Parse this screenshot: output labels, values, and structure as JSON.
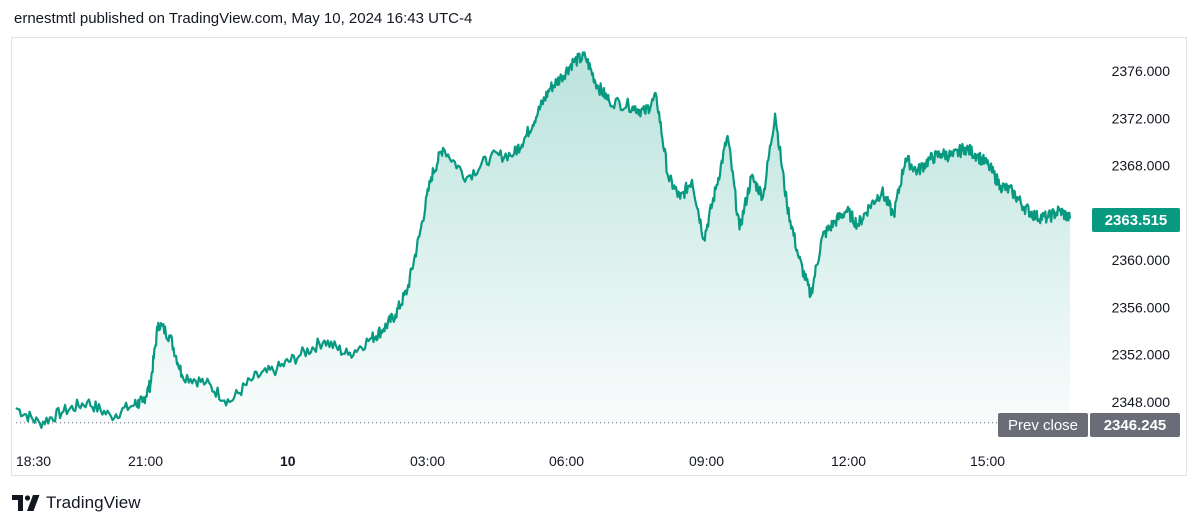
{
  "header": {
    "text": "ernestmtl published on TradingView.com, May 10, 2024 16:43 UTC-4"
  },
  "footer": {
    "brand": "TradingView",
    "logo_icon": "tradingview-logo-icon"
  },
  "colors": {
    "line": "#089981",
    "area_top": "#089981",
    "prev_close_bg": "#6a6d78",
    "last_price_bg": "#089981"
  },
  "chart_data": {
    "type": "area",
    "title": "",
    "xlabel": "",
    "ylabel": "",
    "grid": false,
    "x_ticks": [
      {
        "label": "18:30",
        "bold": false
      },
      {
        "label": "21:00",
        "bold": false
      },
      {
        "label": "10",
        "bold": true
      },
      {
        "label": "03:00",
        "bold": false
      },
      {
        "label": "06:00",
        "bold": false
      },
      {
        "label": "09:00",
        "bold": false
      },
      {
        "label": "12:00",
        "bold": false
      },
      {
        "label": "15:00",
        "bold": false
      }
    ],
    "y_ticks": [
      "2376.000",
      "2372.000",
      "2368.000",
      "2364.000",
      "2360.000",
      "2356.000",
      "2352.000",
      "2348.000"
    ],
    "ylim": [
      2346.0,
      2378.0
    ],
    "x": [
      "18:30",
      "19:00",
      "19:30",
      "20:00",
      "20:30",
      "21:00",
      "21:10",
      "21:20",
      "21:30",
      "21:45",
      "22:00",
      "22:30",
      "23:00",
      "23:30",
      "00:00",
      "00:30",
      "01:00",
      "01:30",
      "02:00",
      "02:15",
      "02:30",
      "02:45",
      "03:00",
      "03:15",
      "03:30",
      "04:00",
      "04:30",
      "05:00",
      "05:15",
      "05:30",
      "05:45",
      "06:00",
      "06:15",
      "06:30",
      "06:45",
      "07:00",
      "07:30",
      "07:45",
      "08:00",
      "08:15",
      "08:30",
      "08:45",
      "09:00",
      "09:15",
      "09:30",
      "09:45",
      "10:00",
      "10:15",
      "10:30",
      "10:45",
      "11:00",
      "11:15",
      "11:30",
      "11:45",
      "12:00",
      "12:15",
      "12:30",
      "12:45",
      "13:00",
      "13:15",
      "13:30",
      "13:45",
      "14:00",
      "14:15",
      "14:30",
      "14:45",
      "15:00",
      "15:15",
      "15:30",
      "15:45",
      "16:00",
      "16:15",
      "16:30",
      "16:43"
    ],
    "series": [
      {
        "values": [
          2347.5,
          2346.2,
          2347.2,
          2348.0,
          2346.8,
          2347.8,
          2348.0,
          2349.5,
          2354.7,
          2353.5,
          2350.3,
          2349.6,
          2348.0,
          2350.0,
          2350.8,
          2352.0,
          2353.2,
          2352.0,
          2353.4,
          2354.2,
          2355.4,
          2357.5,
          2362.0,
          2367.0,
          2369.5,
          2367.0,
          2368.7,
          2369.0,
          2370.5,
          2372.5,
          2374.5,
          2375.5,
          2376.8,
          2377.2,
          2374.8,
          2373.5,
          2373.0,
          2372.5,
          2373.8,
          2367.0,
          2365.2,
          2366.8,
          2361.8,
          2366.0,
          2370.5,
          2362.6,
          2367.0,
          2365.4,
          2372.4,
          2364.7,
          2360.2,
          2357.0,
          2362.0,
          2363.2,
          2364.2,
          2363.0,
          2364.6,
          2365.8,
          2363.8,
          2368.6,
          2367.5,
          2368.5,
          2369.0,
          2368.8,
          2369.5,
          2368.9,
          2368.0,
          2366.3,
          2365.8,
          2364.5,
          2363.7,
          2363.6,
          2364.2,
          2363.515
        ]
      }
    ],
    "last_price": {
      "label": "2363.515",
      "value": 2363.515
    },
    "prev_close": {
      "label": "Prev close",
      "value_label": "2346.245",
      "value": 2346.245
    }
  }
}
